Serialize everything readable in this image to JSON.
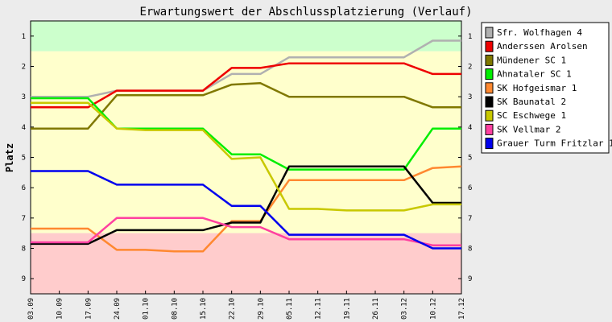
{
  "chart_data": {
    "type": "line",
    "title": "Erwartungswert der Abschlussplatzierung (Verlauf)",
    "ylabel": "Platz",
    "xlabel": "",
    "x": [
      "03.09",
      "10.09",
      "17.09",
      "24.09",
      "01.10",
      "08.10",
      "15.10",
      "22.10",
      "29.10",
      "05.11",
      "12.11",
      "19.11",
      "26.11",
      "03.12",
      "10.12",
      "17.12"
    ],
    "ylim": [
      9.5,
      0.5
    ],
    "y_ticks": [
      "1",
      "2",
      "3",
      "4",
      "5",
      "6",
      "7",
      "8",
      "9"
    ],
    "inverted_y": true,
    "grid": false,
    "legend_position": "right",
    "zones": [
      {
        "from": 0.5,
        "to": 1.5,
        "color": "#ccffcc"
      },
      {
        "from": 1.5,
        "to": 7.5,
        "color": "#ffffcc"
      },
      {
        "from": 7.5,
        "to": 9.5,
        "color": "#ffcccc"
      }
    ],
    "series": [
      {
        "name": "Sfr. Wolfhagen 4",
        "color": "#b0b0b0",
        "values": [
          3.0,
          3.0,
          3.0,
          2.8,
          2.8,
          2.8,
          2.8,
          2.25,
          2.25,
          1.7,
          1.7,
          1.7,
          1.7,
          1.7,
          1.15,
          1.15
        ]
      },
      {
        "name": "Anderssen Arolsen",
        "color": "#ee0000",
        "values": [
          3.35,
          3.35,
          3.35,
          2.8,
          2.8,
          2.8,
          2.8,
          2.05,
          2.05,
          1.9,
          1.9,
          1.9,
          1.9,
          1.9,
          2.25,
          2.25
        ]
      },
      {
        "name": "Mündener SC 1",
        "color": "#807800",
        "values": [
          4.05,
          4.05,
          4.05,
          2.95,
          2.95,
          2.95,
          2.95,
          2.6,
          2.55,
          3.0,
          3.0,
          3.0,
          3.0,
          3.0,
          3.35,
          3.35
        ]
      },
      {
        "name": "Ahnataler SC 1",
        "color": "#00ee00",
        "values": [
          3.05,
          3.05,
          3.05,
          4.05,
          4.05,
          4.05,
          4.05,
          4.9,
          4.9,
          5.4,
          5.4,
          5.4,
          5.4,
          5.4,
          4.05,
          4.05
        ]
      },
      {
        "name": "SK Hofgeismar 1",
        "color": "#ff8830",
        "values": [
          7.35,
          7.35,
          7.35,
          8.05,
          8.05,
          8.1,
          8.1,
          7.1,
          7.1,
          5.75,
          5.75,
          5.75,
          5.75,
          5.75,
          5.35,
          5.3
        ]
      },
      {
        "name": "SK Baunatal 2",
        "color": "#000000",
        "values": [
          7.85,
          7.85,
          7.85,
          7.4,
          7.4,
          7.4,
          7.4,
          7.15,
          7.15,
          5.3,
          5.3,
          5.3,
          5.3,
          5.3,
          6.5,
          6.5
        ]
      },
      {
        "name": "SC Eschwege 1",
        "color": "#c8c800",
        "values": [
          3.2,
          3.2,
          3.2,
          4.05,
          4.1,
          4.1,
          4.1,
          5.05,
          5.0,
          6.7,
          6.7,
          6.75,
          6.75,
          6.75,
          6.55,
          6.55
        ]
      },
      {
        "name": "SK Vellmar 2",
        "color": "#ff40a0",
        "values": [
          7.8,
          7.8,
          7.8,
          7.0,
          7.0,
          7.0,
          7.0,
          7.3,
          7.3,
          7.7,
          7.7,
          7.7,
          7.7,
          7.7,
          7.9,
          7.9
        ]
      },
      {
        "name": "Grauer Turm Fritzlar 1",
        "color": "#0000ee",
        "values": [
          5.45,
          5.45,
          5.45,
          5.9,
          5.9,
          5.9,
          5.9,
          6.6,
          6.6,
          7.55,
          7.55,
          7.55,
          7.55,
          7.55,
          8.0,
          8.0
        ]
      }
    ]
  }
}
